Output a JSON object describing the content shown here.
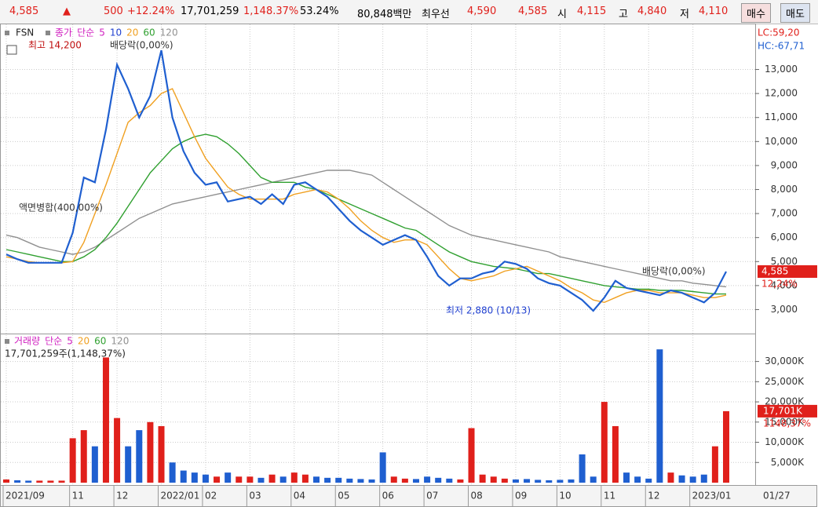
{
  "header": {
    "price": "4,585",
    "arrow": "▲",
    "change": "500",
    "change_pct": "+12.24%",
    "volume": "17,701,259",
    "volume_ratio": "1,148.37%",
    "turnover_pct": "53.24%",
    "amount": "80,848백만",
    "best_label": "최우선",
    "ask": "4,590",
    "bid": "4,585",
    "open_label": "시",
    "open": "4,115",
    "high_label": "고",
    "high": "4,840",
    "low_label": "저",
    "low": "4,110",
    "buy": "매수",
    "sell": "매도"
  },
  "chart_data": [
    {
      "type": "line",
      "code": "FSN",
      "legend_labels": [
        "단순",
        "5",
        "10"
      ],
      "legend_label_colors": [
        "#d020c0",
        "#d020c0",
        "#2040d0"
      ],
      "indicators": [
        "LC:59,20",
        "HC:-67,71"
      ],
      "last_label": "4,585",
      "last_change": "12,24%",
      "current_date": "01/27",
      "categories": [
        "2021/09",
        null,
        null,
        null,
        null,
        null,
        "11",
        null,
        null,
        null,
        "12",
        null,
        null,
        null,
        "2022/01",
        null,
        null,
        null,
        "02",
        null,
        null,
        null,
        "03",
        null,
        null,
        null,
        "04",
        null,
        null,
        null,
        "05",
        null,
        null,
        null,
        "06",
        null,
        null,
        null,
        "07",
        null,
        null,
        null,
        "08",
        null,
        null,
        null,
        "09",
        null,
        null,
        null,
        "10",
        null,
        null,
        null,
        "11",
        null,
        null,
        null,
        "12",
        null,
        null,
        null,
        "2023/01",
        null,
        null,
        null
      ],
      "series": [
        {
          "name": "종가",
          "color": "#1f5fd0",
          "values": [
            5300,
            5100,
            4950,
            4950,
            4950,
            4950,
            6200,
            8500,
            8300,
            10500,
            13200,
            12200,
            11000,
            11900,
            13800,
            11000,
            9600,
            8700,
            8200,
            8300,
            7500,
            7600,
            7700,
            7400,
            7800,
            7400,
            8200,
            8300,
            8000,
            7700,
            7200,
            6700,
            6300,
            6000,
            5700,
            5900,
            6100,
            5900,
            5200,
            4400,
            4000,
            4300,
            4300,
            4500,
            4600,
            5000,
            4900,
            4700,
            4300,
            4100,
            4000,
            3700,
            3400,
            2950,
            3500,
            4200,
            3900,
            3800,
            3700,
            3600,
            3800,
            3700,
            3500,
            3300,
            3700,
            4585
          ]
        },
        {
          "name": "20",
          "color": "#f0a020",
          "values": [
            5200,
            5100,
            5000,
            4950,
            4950,
            4950,
            5000,
            5800,
            7000,
            8200,
            9500,
            10800,
            11200,
            11500,
            12000,
            12200,
            11200,
            10200,
            9300,
            8700,
            8100,
            7800,
            7600,
            7600,
            7600,
            7600,
            7800,
            7900,
            8000,
            7900,
            7600,
            7200,
            6700,
            6300,
            6000,
            5800,
            5900,
            5900,
            5700,
            5200,
            4700,
            4300,
            4200,
            4300,
            4400,
            4600,
            4700,
            4800,
            4600,
            4400,
            4200,
            3900,
            3700,
            3400,
            3300,
            3500,
            3700,
            3800,
            3800,
            3700,
            3700,
            3700,
            3600,
            3500,
            3500,
            3600
          ]
        },
        {
          "name": "60",
          "color": "#30a030",
          "values": [
            5500,
            5400,
            5300,
            5200,
            5100,
            5000,
            5000,
            5200,
            5500,
            6000,
            6600,
            7300,
            8000,
            8700,
            9200,
            9700,
            10000,
            10200,
            10300,
            10200,
            9900,
            9500,
            9000,
            8500,
            8300,
            8300,
            8300,
            8100,
            8000,
            7800,
            7600,
            7400,
            7200,
            7000,
            6800,
            6600,
            6400,
            6300,
            6000,
            5700,
            5400,
            5200,
            5000,
            4900,
            4800,
            4750,
            4700,
            4600,
            4500,
            4500,
            4400,
            4300,
            4200,
            4100,
            4000,
            3950,
            3900,
            3850,
            3850,
            3800,
            3800,
            3800,
            3750,
            3700,
            3650,
            3650
          ]
        },
        {
          "name": "120",
          "color": "#909090",
          "values": [
            6100,
            6000,
            5800,
            5600,
            5500,
            5400,
            5300,
            5400,
            5600,
            5900,
            6200,
            6500,
            6800,
            7000,
            7200,
            7400,
            7500,
            7600,
            7700,
            7800,
            7900,
            8000,
            8100,
            8200,
            8300,
            8400,
            8500,
            8600,
            8700,
            8800,
            8800,
            8800,
            8700,
            8600,
            8300,
            8000,
            7700,
            7400,
            7100,
            6800,
            6500,
            6300,
            6100,
            6000,
            5900,
            5800,
            5700,
            5600,
            5500,
            5400,
            5200,
            5100,
            5000,
            4900,
            4800,
            4700,
            4600,
            4500,
            4400,
            4300,
            4200,
            4200,
            4100,
            4050,
            4000,
            3950
          ]
        }
      ],
      "ylim": [
        2100,
        14750
      ],
      "yticks": [
        {
          "value": 3000,
          "label": "3,000"
        },
        {
          "value": 4000,
          "label": "4,000"
        },
        {
          "value": 5000,
          "label": "5,000"
        },
        {
          "value": 6000,
          "label": "6,000"
        },
        {
          "value": 7000,
          "label": "7,000"
        },
        {
          "value": 8000,
          "label": "8,000"
        },
        {
          "value": 9000,
          "label": "9,000"
        },
        {
          "value": 10000,
          "label": "10,000"
        },
        {
          "value": 11000,
          "label": "11,000"
        },
        {
          "value": 12000,
          "label": "12,000"
        },
        {
          "value": 13000,
          "label": "13,000"
        }
      ],
      "grid": true,
      "annotations": [
        "최고 14,200",
        "배당락(0,00%)",
        "액면병합(400,00%)",
        "최저 2,880 (10/13)",
        "배당락(0,00%)"
      ]
    },
    {
      "type": "bar",
      "title": "거래량",
      "legend_labels": [
        "단순",
        "5",
        "20",
        "60",
        "120"
      ],
      "legend_label_colors": [
        "#d020c0",
        "#d020c0",
        "#f0a020",
        "#30a030",
        "#909090"
      ],
      "info": "17,701,259주(1,148,37%)",
      "last_label": "17,701K",
      "last_change": "1148,37%",
      "up_color": "#e0201b",
      "down_color": "#1f5fd0",
      "values": [
        800,
        600,
        500,
        500,
        500,
        500,
        11000,
        13000,
        9000,
        31000,
        16000,
        9000,
        13000,
        15000,
        14000,
        5000,
        3000,
        2500,
        2000,
        1500,
        2500,
        1500,
        1500,
        1200,
        2000,
        1500,
        2500,
        2000,
        1500,
        1200,
        1200,
        1000,
        900,
        800,
        7500,
        1500,
        1000,
        900,
        1500,
        1200,
        1000,
        800,
        13500,
        2000,
        1500,
        1000,
        800,
        900,
        700,
        600,
        700,
        800,
        7000,
        1500,
        20000,
        14000,
        2500,
        1500,
        1000,
        33000,
        2500,
        1800,
        1500,
        2000,
        9000,
        17701
      ],
      "ylim": [
        0,
        34000
      ],
      "yticks": [
        {
          "value": 5000,
          "label": "5,000K"
        },
        {
          "value": 10000,
          "label": "10,000K"
        },
        {
          "value": 15000,
          "label": "15,000K"
        },
        {
          "value": 20000,
          "label": "20,000K"
        },
        {
          "value": 25000,
          "label": "25,000K"
        },
        {
          "value": 30000,
          "label": "30,000K"
        }
      ],
      "grid": true
    }
  ]
}
